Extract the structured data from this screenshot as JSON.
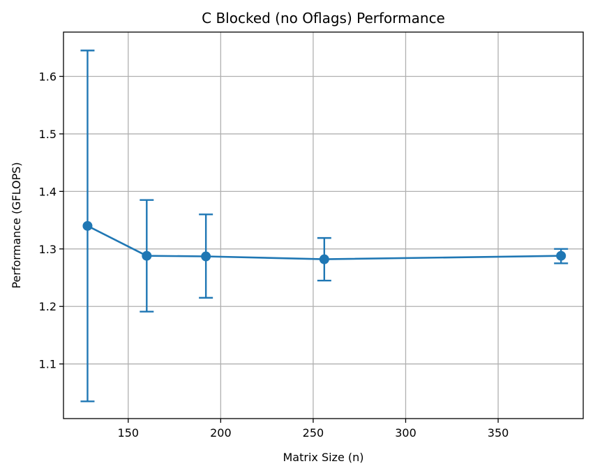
{
  "chart_data": {
    "type": "line",
    "title": "C Blocked (no Oflags) Performance",
    "xlabel": "Matrix Size (n)",
    "ylabel": "Performance (GFLOPS)",
    "xlim": [
      115,
      396
    ],
    "ylim": [
      1.005,
      1.677
    ],
    "xticks": [
      150,
      200,
      250,
      300,
      350
    ],
    "yticks": [
      1.1,
      1.2,
      1.3,
      1.4,
      1.5,
      1.6
    ],
    "xtick_labels": [
      "150",
      "200",
      "250",
      "300",
      "350"
    ],
    "ytick_labels": [
      "1.1",
      "1.2",
      "1.3",
      "1.4",
      "1.5",
      "1.6"
    ],
    "grid": true,
    "series": [
      {
        "color": "#1f77b4",
        "marker": "circle",
        "points": [
          {
            "x": 128,
            "y": 1.34,
            "err_low": 1.035,
            "err_high": 1.645
          },
          {
            "x": 160,
            "y": 1.288,
            "err_low": 1.191,
            "err_high": 1.385
          },
          {
            "x": 192,
            "y": 1.287,
            "err_low": 1.215,
            "err_high": 1.36
          },
          {
            "x": 256,
            "y": 1.282,
            "err_low": 1.245,
            "err_high": 1.319
          },
          {
            "x": 384,
            "y": 1.288,
            "err_low": 1.275,
            "err_high": 1.3
          }
        ]
      }
    ]
  }
}
